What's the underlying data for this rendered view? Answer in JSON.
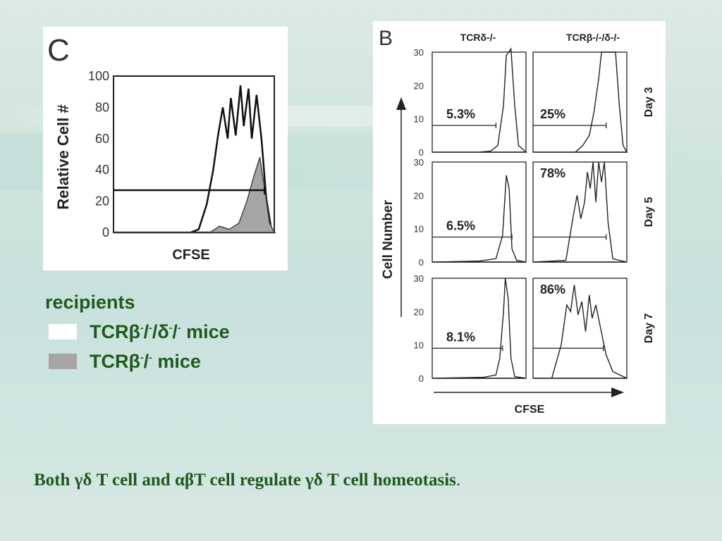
{
  "legend": {
    "title": "recipients",
    "items": [
      {
        "pre": "TCRβ",
        "s1": "-",
        "mid1": "/",
        "s2": "-",
        "mid2": "/δ",
        "s3": "-",
        "mid3": "/",
        "s4": "-",
        "post": " mice",
        "color": "#ffffff"
      },
      {
        "pre": "TCRβ",
        "s1": "-",
        "mid1": "/",
        "s2": "-",
        "post": " mice",
        "color": "#a6a6a6"
      }
    ]
  },
  "caption": {
    "text": "Both γδ T cell and αβT cell regulate γδ T cell homeotasis",
    "end": "."
  },
  "chart_data": [
    {
      "type": "area",
      "panel_letter": "C",
      "xlabel": "CFSE",
      "ylabel": "Relative Cell #",
      "ylim": [
        0,
        100
      ],
      "yticks": [
        "100",
        "80",
        "60",
        "40",
        "20",
        "0"
      ],
      "series": [
        {
          "color": "#ffffff",
          "values": [
            [
              0,
              0
            ],
            [
              0.48,
              0
            ],
            [
              0.53,
              2
            ],
            [
              0.58,
              18
            ],
            [
              0.62,
              40
            ],
            [
              0.65,
              62
            ],
            [
              0.68,
              80
            ],
            [
              0.71,
              60
            ],
            [
              0.73,
              86
            ],
            [
              0.76,
              62
            ],
            [
              0.79,
              94
            ],
            [
              0.81,
              68
            ],
            [
              0.84,
              92
            ],
            [
              0.86,
              60
            ],
            [
              0.89,
              88
            ],
            [
              0.92,
              60
            ],
            [
              0.95,
              22
            ],
            [
              0.98,
              3
            ],
            [
              1,
              0
            ]
          ]
        },
        {
          "color": "#a6a6a6",
          "values": [
            [
              0,
              0
            ],
            [
              0.6,
              0
            ],
            [
              0.66,
              4
            ],
            [
              0.72,
              2
            ],
            [
              0.78,
              6
            ],
            [
              0.83,
              20
            ],
            [
              0.87,
              35
            ],
            [
              0.91,
              48
            ],
            [
              0.94,
              28
            ],
            [
              0.97,
              6
            ],
            [
              1,
              0
            ]
          ]
        }
      ],
      "gate": {
        "y": 27,
        "x": [
          0,
          0.94
        ]
      }
    },
    {
      "type": "area",
      "panel_letter": "B",
      "xlabel": "CFSE",
      "ylabel": "Cell Number",
      "columns": [
        "TCRδ-/-",
        "TCRβ-/-/δ-/-"
      ],
      "rows": [
        "Day 3",
        "Day 5",
        "Day 7"
      ],
      "ylim": [
        0,
        30
      ],
      "yticks": [
        "30",
        "20",
        "10",
        "0"
      ],
      "panels": [
        {
          "row": 0,
          "col": 0,
          "percent": "5.3%",
          "gate_y": 8,
          "gate_x": [
            0,
            0.68
          ],
          "values": [
            [
              0,
              0
            ],
            [
              0.5,
              0
            ],
            [
              0.62,
              0.3
            ],
            [
              0.7,
              2
            ],
            [
              0.76,
              14
            ],
            [
              0.79,
              29
            ],
            [
              0.84,
              31
            ],
            [
              0.88,
              14
            ],
            [
              0.92,
              2
            ],
            [
              1,
              0
            ]
          ]
        },
        {
          "row": 0,
          "col": 1,
          "percent": "25%",
          "gate_y": 8,
          "gate_x": [
            0,
            0.78
          ],
          "values": [
            [
              0,
              0
            ],
            [
              0.45,
              0
            ],
            [
              0.53,
              2
            ],
            [
              0.6,
              5
            ],
            [
              0.65,
              12
            ],
            [
              0.7,
              22
            ],
            [
              0.73,
              30
            ],
            [
              0.88,
              30
            ],
            [
              0.92,
              14
            ],
            [
              0.96,
              2
            ],
            [
              1,
              0
            ]
          ]
        },
        {
          "row": 1,
          "col": 0,
          "percent": "6.5%",
          "gate_y": 7.5,
          "gate_x": [
            0,
            0.85
          ],
          "values": [
            [
              0,
              0
            ],
            [
              0.5,
              0.3
            ],
            [
              0.68,
              1
            ],
            [
              0.75,
              8
            ],
            [
              0.79,
              26
            ],
            [
              0.82,
              22
            ],
            [
              0.85,
              4
            ],
            [
              0.9,
              0.5
            ],
            [
              1,
              0
            ]
          ]
        },
        {
          "row": 1,
          "col": 1,
          "percent": "78%",
          "gate_y": 7.5,
          "gate_x": [
            0,
            0.78
          ],
          "values": [
            [
              0,
              0
            ],
            [
              0.35,
              0.5
            ],
            [
              0.43,
              14
            ],
            [
              0.47,
              20
            ],
            [
              0.51,
              13
            ],
            [
              0.55,
              18
            ],
            [
              0.58,
              27
            ],
            [
              0.61,
              22
            ],
            [
              0.64,
              30
            ],
            [
              0.67,
              18
            ],
            [
              0.7,
              30
            ],
            [
              0.73,
              24
            ],
            [
              0.76,
              30
            ],
            [
              0.8,
              12
            ],
            [
              0.85,
              1
            ],
            [
              1,
              0
            ]
          ]
        },
        {
          "row": 2,
          "col": 0,
          "percent": "8.1%",
          "gate_y": 9,
          "gate_x": [
            0,
            0.75
          ],
          "values": [
            [
              0,
              0
            ],
            [
              0.55,
              0.3
            ],
            [
              0.68,
              1
            ],
            [
              0.72,
              6
            ],
            [
              0.76,
              20
            ],
            [
              0.78,
              30
            ],
            [
              0.81,
              24
            ],
            [
              0.84,
              6
            ],
            [
              0.88,
              0.5
            ],
            [
              1,
              0
            ]
          ]
        },
        {
          "row": 2,
          "col": 1,
          "percent": "86%",
          "gate_y": 9,
          "gate_x": [
            0,
            0.75
          ],
          "values": [
            [
              0,
              0
            ],
            [
              0.2,
              0
            ],
            [
              0.3,
              10
            ],
            [
              0.36,
              22
            ],
            [
              0.4,
              20
            ],
            [
              0.44,
              28
            ],
            [
              0.48,
              19
            ],
            [
              0.52,
              23
            ],
            [
              0.56,
              14
            ],
            [
              0.6,
              25
            ],
            [
              0.63,
              18
            ],
            [
              0.67,
              22
            ],
            [
              0.72,
              15
            ],
            [
              0.78,
              7
            ],
            [
              0.85,
              2
            ],
            [
              1,
              0
            ]
          ]
        }
      ]
    }
  ]
}
